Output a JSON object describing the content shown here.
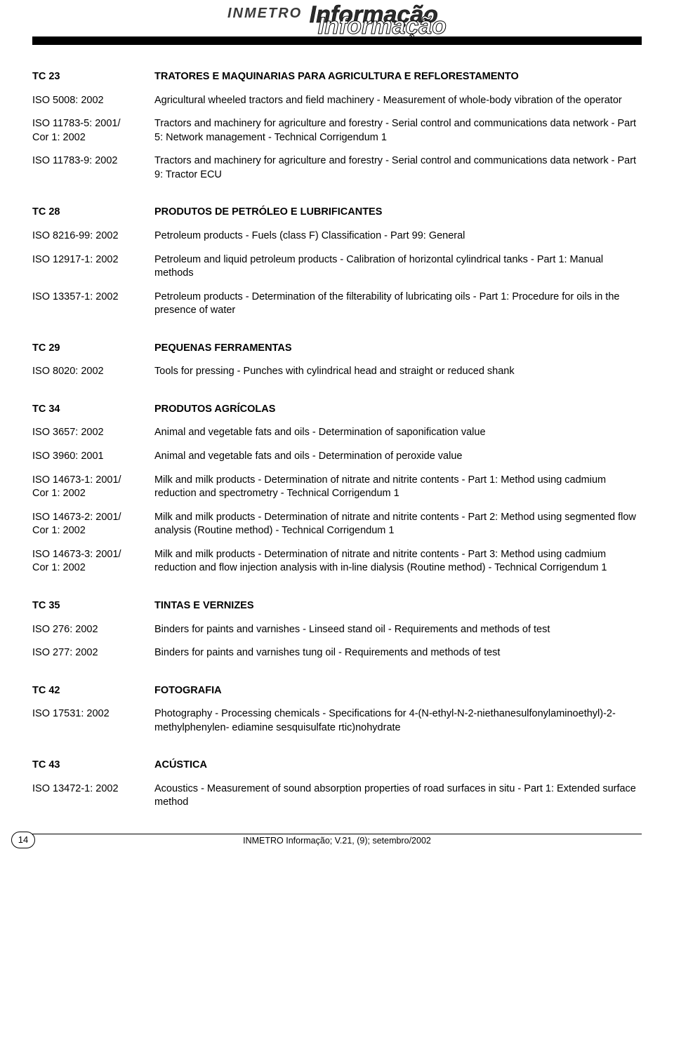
{
  "header": {
    "brand": "INMETRO",
    "word": "Informação"
  },
  "sections": [
    {
      "header": {
        "code": "TC 23",
        "desc": "TRATORES E MAQUINARIAS PARA AGRICULTURA E REFLORESTAMENTO"
      },
      "rows": [
        {
          "code": "ISO 5008: 2002",
          "desc": "Agricultural wheeled tractors and field machinery - Measurement of whole-body vibration of the operator"
        },
        {
          "code": "ISO 11783-5: 2001/\nCor 1: 2002",
          "desc": "Tractors and machinery for agriculture and forestry - Serial control and communications data network - Part 5: Network management - Technical Corrigendum 1"
        },
        {
          "code": "ISO 11783-9: 2002",
          "desc": "Tractors and machinery for agriculture and forestry - Serial control and communications data network - Part 9: Tractor ECU"
        }
      ]
    },
    {
      "header": {
        "code": "TC 28",
        "desc": "PRODUTOS DE PETRÓLEO E LUBRIFICANTES"
      },
      "rows": [
        {
          "code": "ISO 8216-99: 2002",
          "desc": "Petroleum products - Fuels (class F) Classification - Part 99: General"
        },
        {
          "code": "ISO 12917-1: 2002",
          "desc": "Petroleum and liquid petroleum products - Calibration of horizontal cylindrical tanks - Part 1: Manual methods"
        },
        {
          "code": "ISO 13357-1: 2002",
          "desc": "Petroleum products - Determination of the filterability of lubricating oils - Part 1: Procedure for oils in the presence of water"
        }
      ]
    },
    {
      "header": {
        "code": "TC 29",
        "desc": "PEQUENAS FERRAMENTAS"
      },
      "rows": [
        {
          "code": "ISO 8020: 2002",
          "desc": "Tools for pressing - Punches with cylindrical head and straight or reduced shank"
        }
      ]
    },
    {
      "header": {
        "code": "TC 34",
        "desc": "PRODUTOS AGRÍCOLAS"
      },
      "rows": [
        {
          "code": "ISO 3657: 2002",
          "desc": "Animal and vegetable fats and oils - Determination of saponification value"
        },
        {
          "code": "ISO 3960: 2001",
          "desc": "Animal and vegetable fats and oils - Determination of peroxide value"
        },
        {
          "code": "ISO 14673-1: 2001/\nCor 1: 2002",
          "desc": "Milk and milk products - Determination of nitrate and nitrite contents - Part 1: Method using cadmium reduction and spectrometry - Technical Corrigendum 1"
        },
        {
          "code": "ISO 14673-2: 2001/\nCor 1: 2002",
          "desc": "Milk and milk products - Determination of nitrate and nitrite contents - Part 2: Method using segmented flow analysis (Routine method) - Technical Corrigendum 1"
        },
        {
          "code": "ISO 14673-3: 2001/\nCor 1: 2002",
          "desc": "Milk and milk products - Determination of nitrate and nitrite contents - Part 3: Method using cadmium reduction and flow injection analysis with in-line dialysis (Routine method) - Technical Corrigendum 1"
        }
      ]
    },
    {
      "header": {
        "code": "TC 35",
        "desc": "TINTAS E VERNIZES"
      },
      "rows": [
        {
          "code": "ISO 276: 2002",
          "desc": "Binders for paints and varnishes - Linseed stand oil - Requirements and methods of test"
        },
        {
          "code": "ISO 277: 2002",
          "desc": "Binders for paints and varnishes tung oil - Requirements and methods of test"
        }
      ]
    },
    {
      "header": {
        "code": "TC 42",
        "desc": "FOTOGRAFIA"
      },
      "rows": [
        {
          "code": "ISO 17531: 2002",
          "desc": "Photography - Processing chemicals - Specifications for 4-(N-ethyl-N-2-niethanesulfonylaminoethyl)-2-methylphenylen- ediamine sesquisulfate rtic)nohydrate"
        }
      ]
    },
    {
      "header": {
        "code": "TC 43",
        "desc": "ACÚSTICA"
      },
      "rows": [
        {
          "code": "ISO 13472-1: 2002",
          "desc": "Acoustics - Measurement of sound absorption properties of road surfaces in situ - Part 1: Extended surface method"
        }
      ]
    }
  ],
  "footer": {
    "page": "14",
    "citation": "INMETRO Informação; V.21, (9); setembro/2002"
  }
}
